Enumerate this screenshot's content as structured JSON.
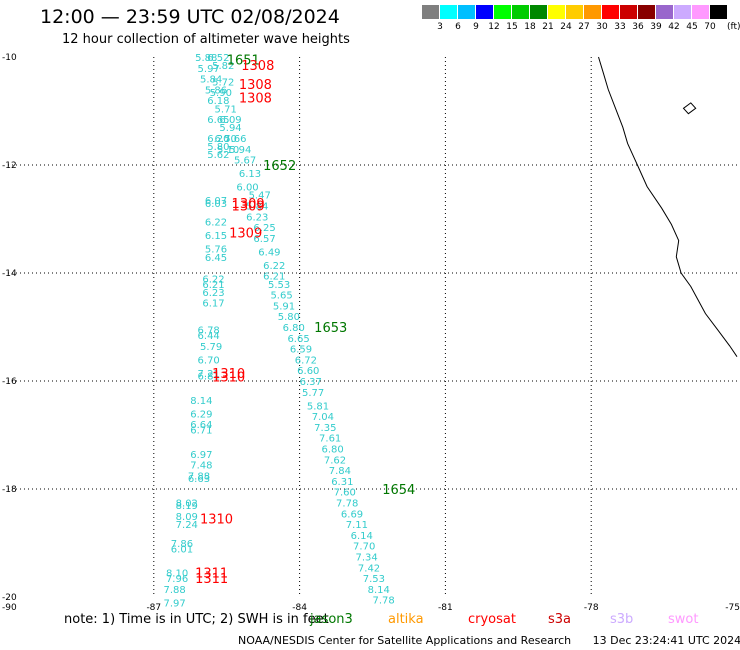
{
  "title": "12:00 — 23:59 UTC 02/08/2024",
  "subtitle": "12 hour collection of altimeter wave heights",
  "legend": {
    "colors": [
      "#7f7f7f",
      "#00ffff",
      "#00bfff",
      "#0000ff",
      "#00ff00",
      "#00cc00",
      "#008800",
      "#ffff00",
      "#ffcc00",
      "#ff9900",
      "#ff0000",
      "#cc0000",
      "#880000",
      "#9966cc",
      "#ccaaff",
      "#ff99ff",
      "#000000"
    ],
    "labels": [
      "3",
      "6",
      "9",
      "12",
      "15",
      "18",
      "21",
      "24",
      "27",
      "30",
      "33",
      "36",
      "39",
      "42",
      "45",
      "70"
    ],
    "units": "(ft)"
  },
  "axes": {
    "lat_labels": [
      "-10",
      "-12",
      "-14",
      "-16",
      "-18",
      "-20"
    ],
    "lat_values": [
      -10,
      -12,
      -14,
      -16,
      -18,
      -20
    ],
    "lon_labels": [
      "-90",
      "-87",
      "-84",
      "-81",
      "-78",
      "-75"
    ],
    "lon_values": [
      -90,
      -87,
      -84,
      -81,
      -78,
      -75
    ]
  },
  "colors": {
    "track": "#33cccc",
    "time_green": "#007700",
    "time_red": "#ff0000"
  },
  "track_points": [
    {
      "lat": -10.0,
      "lon": -86.15,
      "v": "5.88"
    },
    {
      "lat": -10.0,
      "lon": -85.9,
      "v": "6.52"
    },
    {
      "lat": -10.2,
      "lon": -86.1,
      "v": "5.97"
    },
    {
      "lat": -10.15,
      "lon": -85.8,
      "v": "5.82"
    },
    {
      "lat": -10.4,
      "lon": -86.05,
      "v": "5.84"
    },
    {
      "lat": -10.45,
      "lon": -85.8,
      "v": "5.72"
    },
    {
      "lat": -10.6,
      "lon": -85.95,
      "v": "5.86"
    },
    {
      "lat": -10.65,
      "lon": -85.85,
      "v": "5.90"
    },
    {
      "lat": -10.8,
      "lon": -85.9,
      "v": "6.18"
    },
    {
      "lat": -10.95,
      "lon": -85.75,
      "v": "5.71"
    },
    {
      "lat": -11.15,
      "lon": -85.9,
      "v": "6.65"
    },
    {
      "lat": -11.15,
      "lon": -85.65,
      "v": "6.09"
    },
    {
      "lat": -11.3,
      "lon": -85.65,
      "v": "5.94"
    },
    {
      "lat": -11.5,
      "lon": -85.9,
      "v": "6.20"
    },
    {
      "lat": -11.5,
      "lon": -85.75,
      "v": "6.70"
    },
    {
      "lat": -11.5,
      "lon": -85.55,
      "v": "5.66"
    },
    {
      "lat": -11.65,
      "lon": -85.9,
      "v": "5.80"
    },
    {
      "lat": -11.7,
      "lon": -85.7,
      "v": "5.10"
    },
    {
      "lat": -11.7,
      "lon": -85.45,
      "v": "5.94"
    },
    {
      "lat": -11.8,
      "lon": -85.9,
      "v": "5.62"
    },
    {
      "lat": -11.9,
      "lon": -85.35,
      "v": "5.67"
    },
    {
      "lat": -12.15,
      "lon": -85.25,
      "v": "6.13"
    },
    {
      "lat": -12.4,
      "lon": -85.3,
      "v": "6.00"
    },
    {
      "lat": -12.55,
      "lon": -85.05,
      "v": "5.47"
    },
    {
      "lat": -12.65,
      "lon": -85.95,
      "v": "6.07"
    },
    {
      "lat": -12.7,
      "lon": -85.95,
      "v": "6.03"
    },
    {
      "lat": -12.75,
      "lon": -85.1,
      "v": "5.84"
    },
    {
      "lat": -12.95,
      "lon": -85.1,
      "v": "6.23"
    },
    {
      "lat": -13.05,
      "lon": -85.95,
      "v": "6.22"
    },
    {
      "lat": -13.15,
      "lon": -84.95,
      "v": "6.25"
    },
    {
      "lat": -13.3,
      "lon": -85.95,
      "v": "6.15"
    },
    {
      "lat": -13.35,
      "lon": -84.95,
      "v": "6.57"
    },
    {
      "lat": -13.55,
      "lon": -85.95,
      "v": "5.76"
    },
    {
      "lat": -13.6,
      "lon": -84.85,
      "v": "6.49"
    },
    {
      "lat": -13.7,
      "lon": -85.95,
      "v": "6.45"
    },
    {
      "lat": -13.85,
      "lon": -84.75,
      "v": "6.22"
    },
    {
      "lat": -14.05,
      "lon": -84.75,
      "v": "6.21"
    },
    {
      "lat": -14.1,
      "lon": -86.0,
      "v": "6.22"
    },
    {
      "lat": -14.2,
      "lon": -86.0,
      "v": "6.21"
    },
    {
      "lat": -14.2,
      "lon": -84.65,
      "v": "5.53"
    },
    {
      "lat": -14.35,
      "lon": -86.0,
      "v": "6.23"
    },
    {
      "lat": -14.4,
      "lon": -84.6,
      "v": "5.65"
    },
    {
      "lat": -14.55,
      "lon": -86.0,
      "v": "6.17"
    },
    {
      "lat": -14.6,
      "lon": -84.55,
      "v": "5.91"
    },
    {
      "lat": -14.8,
      "lon": -84.45,
      "v": "5.80"
    },
    {
      "lat": -15.0,
      "lon": -84.35,
      "v": "6.80"
    },
    {
      "lat": -15.05,
      "lon": -86.1,
      "v": "6.78"
    },
    {
      "lat": -15.15,
      "lon": -86.1,
      "v": "6.44"
    },
    {
      "lat": -15.2,
      "lon": -84.25,
      "v": "6.65"
    },
    {
      "lat": -15.35,
      "lon": -86.05,
      "v": "5.79"
    },
    {
      "lat": -15.4,
      "lon": -84.2,
      "v": "6.59"
    },
    {
      "lat": -15.6,
      "lon": -86.1,
      "v": "6.70"
    },
    {
      "lat": -15.6,
      "lon": -84.1,
      "v": "6.72"
    },
    {
      "lat": -15.8,
      "lon": -84.05,
      "v": "6.60"
    },
    {
      "lat": -15.85,
      "lon": -86.1,
      "v": "7.21"
    },
    {
      "lat": -15.9,
      "lon": -86.1,
      "v": "6.81"
    },
    {
      "lat": -16.0,
      "lon": -84.0,
      "v": "6.37"
    },
    {
      "lat": -16.2,
      "lon": -83.95,
      "v": "5.77"
    },
    {
      "lat": -16.35,
      "lon": -86.25,
      "v": "8.14"
    },
    {
      "lat": -16.45,
      "lon": -83.85,
      "v": "5.81"
    },
    {
      "lat": -16.6,
      "lon": -86.25,
      "v": "6.29"
    },
    {
      "lat": -16.65,
      "lon": -83.75,
      "v": "7.04"
    },
    {
      "lat": -16.8,
      "lon": -86.25,
      "v": "6.64"
    },
    {
      "lat": -16.85,
      "lon": -83.7,
      "v": "7.35"
    },
    {
      "lat": -16.9,
      "lon": -86.25,
      "v": "6.71"
    },
    {
      "lat": -17.05,
      "lon": -83.6,
      "v": "7.61"
    },
    {
      "lat": -17.25,
      "lon": -83.55,
      "v": "6.80"
    },
    {
      "lat": -17.35,
      "lon": -86.25,
      "v": "6.97"
    },
    {
      "lat": -17.45,
      "lon": -83.5,
      "v": "7.62"
    },
    {
      "lat": -17.55,
      "lon": -86.25,
      "v": "7.48"
    },
    {
      "lat": -17.65,
      "lon": -83.4,
      "v": "7.84"
    },
    {
      "lat": -17.75,
      "lon": -86.3,
      "v": "7.88"
    },
    {
      "lat": -17.8,
      "lon": -86.3,
      "v": "6.63"
    },
    {
      "lat": -17.85,
      "lon": -83.35,
      "v": "6.31"
    },
    {
      "lat": -18.05,
      "lon": -83.3,
      "v": "7.60"
    },
    {
      "lat": -18.25,
      "lon": -86.55,
      "v": "8.02"
    },
    {
      "lat": -18.25,
      "lon": -83.25,
      "v": "7.78"
    },
    {
      "lat": -18.3,
      "lon": -86.55,
      "v": "8.19"
    },
    {
      "lat": -18.45,
      "lon": -83.15,
      "v": "6.69"
    },
    {
      "lat": -18.5,
      "lon": -86.55,
      "v": "8.09"
    },
    {
      "lat": -18.65,
      "lon": -86.55,
      "v": "7.24"
    },
    {
      "lat": -18.65,
      "lon": -83.05,
      "v": "7.11"
    },
    {
      "lat": -18.85,
      "lon": -82.95,
      "v": "6.14"
    },
    {
      "lat": -19.0,
      "lon": -86.65,
      "v": "7.86"
    },
    {
      "lat": -19.05,
      "lon": -82.9,
      "v": "7.70"
    },
    {
      "lat": -19.1,
      "lon": -86.65,
      "v": "6.01"
    },
    {
      "lat": -19.25,
      "lon": -82.85,
      "v": "7.34"
    },
    {
      "lat": -19.45,
      "lon": -82.8,
      "v": "7.42"
    },
    {
      "lat": -19.55,
      "lon": -86.75,
      "v": "8.10"
    },
    {
      "lat": -19.65,
      "lon": -86.75,
      "v": "7.96"
    },
    {
      "lat": -19.65,
      "lon": -82.7,
      "v": "7.53"
    },
    {
      "lat": -19.85,
      "lon": -86.8,
      "v": "7.88"
    },
    {
      "lat": -19.85,
      "lon": -82.6,
      "v": "8.14"
    },
    {
      "lat": -20.05,
      "lon": -82.5,
      "v": "7.78"
    },
    {
      "lat": -20.1,
      "lon": -86.8,
      "v": "7.97"
    }
  ],
  "time_labels": [
    {
      "lat": -10.05,
      "lon": -85.5,
      "text": "1651",
      "sat": "jason3"
    },
    {
      "lat": -10.15,
      "lon": -85.2,
      "text": "1308",
      "sat": "cryosat"
    },
    {
      "lat": -10.5,
      "lon": -85.25,
      "text": "1308",
      "sat": "cryosat"
    },
    {
      "lat": -10.75,
      "lon": -85.25,
      "text": "1308",
      "sat": "cryosat"
    },
    {
      "lat": -12.0,
      "lon": -84.75,
      "text": "1652",
      "sat": "jason3"
    },
    {
      "lat": -12.7,
      "lon": -85.4,
      "text": "1309",
      "sat": "cryosat"
    },
    {
      "lat": -12.75,
      "lon": -85.4,
      "text": "1309",
      "sat": "cryosat"
    },
    {
      "lat": -13.25,
      "lon": -85.45,
      "text": "1309",
      "sat": "cryosat"
    },
    {
      "lat": -15.0,
      "lon": -83.7,
      "text": "1653",
      "sat": "jason3"
    },
    {
      "lat": -15.85,
      "lon": -85.8,
      "text": "1310",
      "sat": "cryosat"
    },
    {
      "lat": -15.92,
      "lon": -85.8,
      "text": "1310",
      "sat": "cryosat"
    },
    {
      "lat": -18.0,
      "lon": -82.3,
      "text": "1654",
      "sat": "jason3"
    },
    {
      "lat": -18.55,
      "lon": -86.05,
      "text": "1310",
      "sat": "cryosat"
    },
    {
      "lat": -19.55,
      "lon": -86.15,
      "text": "1311",
      "sat": "cryosat"
    },
    {
      "lat": -19.65,
      "lon": -86.15,
      "text": "1311",
      "sat": "cryosat"
    }
  ],
  "coastline": [
    [
      -77.85,
      -10.0
    ],
    [
      -77.75,
      -10.3
    ],
    [
      -77.65,
      -10.6
    ],
    [
      -77.5,
      -10.95
    ],
    [
      -77.35,
      -11.3
    ],
    [
      -77.25,
      -11.6
    ],
    [
      -77.05,
      -12.0
    ],
    [
      -76.85,
      -12.4
    ],
    [
      -76.55,
      -12.8
    ],
    [
      -76.35,
      -13.1
    ],
    [
      -76.2,
      -13.4
    ],
    [
      -76.25,
      -13.7
    ],
    [
      -76.15,
      -14.0
    ],
    [
      -75.95,
      -14.25
    ],
    [
      -75.8,
      -14.5
    ],
    [
      -75.65,
      -14.75
    ],
    [
      -75.4,
      -15.05
    ],
    [
      -75.15,
      -15.35
    ],
    [
      -75.0,
      -15.55
    ]
  ],
  "island": [
    [
      -76.1,
      -10.95
    ],
    [
      -75.95,
      -10.85
    ],
    [
      -75.85,
      -10.95
    ],
    [
      -76.0,
      -11.05
    ]
  ],
  "note": "note: 1) Time is in UTC; 2) SWH is in feet",
  "satellites": [
    {
      "name": "jason3",
      "color": "#007700"
    },
    {
      "name": "altika",
      "color": "#ff9900"
    },
    {
      "name": "cryosat",
      "color": "#ff0000"
    },
    {
      "name": "s3a",
      "color": "#cc0000"
    },
    {
      "name": "s3b",
      "color": "#ccaaff"
    },
    {
      "name": "swot",
      "color": "#ff99ff"
    }
  ],
  "footer": {
    "credit": "NOAA/NESDIS Center for Satellite Applications and Research",
    "stamp": "13 Dec 23:24:41 UTC 2024"
  }
}
